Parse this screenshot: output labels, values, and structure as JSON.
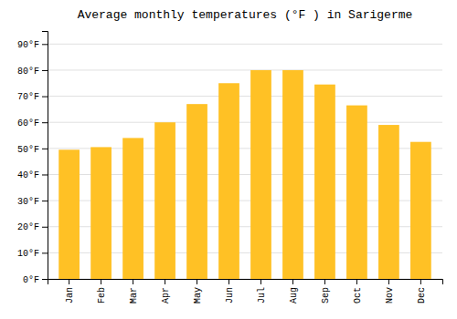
{
  "chart_data": {
    "type": "bar",
    "title": "Average monthly temperatures (°F ) in Sarigerme",
    "categories": [
      "Jan",
      "Feb",
      "Mar",
      "Apr",
      "May",
      "Jun",
      "Jul",
      "Aug",
      "Sep",
      "Oct",
      "Nov",
      "Dec"
    ],
    "values": [
      49.5,
      50.5,
      54,
      60,
      67,
      75,
      80,
      80,
      74.5,
      66.5,
      59,
      52.5
    ],
    "color": "#FFC125",
    "ylim": [
      0,
      95
    ],
    "yticks": [
      {
        "value": 0,
        "label": "0°F"
      },
      {
        "value": 10,
        "label": "10°F"
      },
      {
        "value": 20,
        "label": "20°F"
      },
      {
        "value": 30,
        "label": "30°F"
      },
      {
        "value": 40,
        "label": "40°F"
      },
      {
        "value": 50,
        "label": "50°F"
      },
      {
        "value": 60,
        "label": "60°F"
      },
      {
        "value": 70,
        "label": "70°F"
      },
      {
        "value": 80,
        "label": "80°F"
      },
      {
        "value": 90,
        "label": "90°F"
      }
    ],
    "grid": true
  }
}
